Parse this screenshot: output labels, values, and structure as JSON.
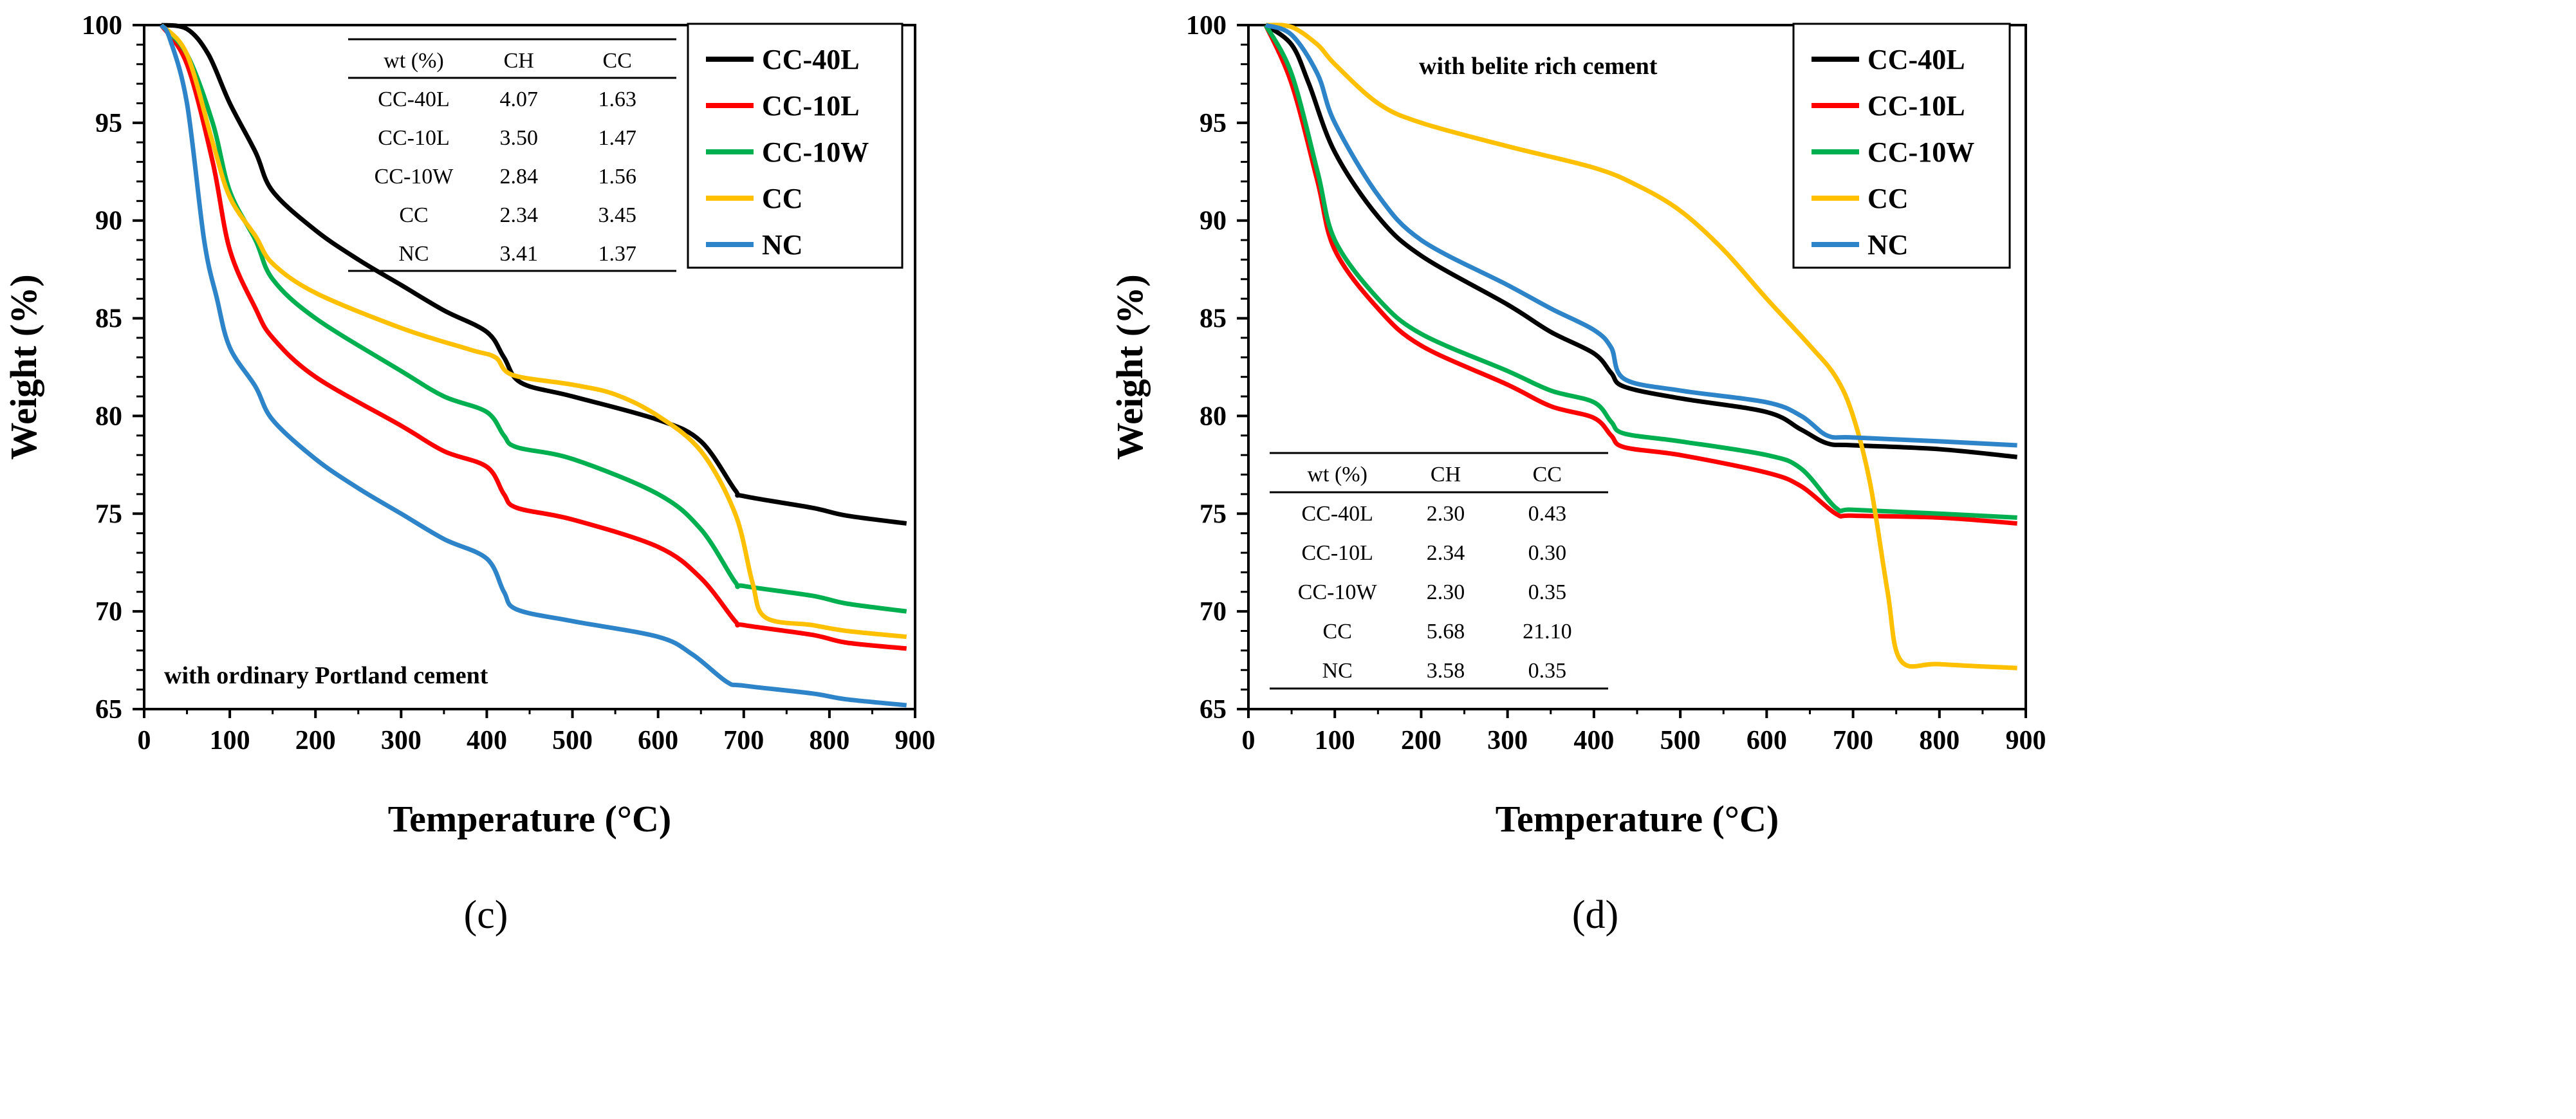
{
  "chart_data": [
    {
      "type": "line",
      "panel_label": "(c)",
      "annotation": "with ordinary Portland cement",
      "xlabel": "Temperature (°C)",
      "ylabel": "Weight (%)",
      "xlim": [
        0,
        900
      ],
      "ylim": [
        65,
        100
      ],
      "xticks": [
        0,
        100,
        200,
        300,
        400,
        500,
        600,
        700,
        800,
        900
      ],
      "yticks": [
        65,
        70,
        75,
        80,
        85,
        90,
        95,
        100
      ],
      "legend_position": "top-right",
      "table": {
        "headers": [
          "wt (%)",
          "CH",
          "CC"
        ],
        "rows": [
          [
            "CC-40L",
            "4.07",
            "1.63"
          ],
          [
            "CC-10L",
            "3.50",
            "1.47"
          ],
          [
            "CC-10W",
            "2.84",
            "1.56"
          ],
          [
            "CC",
            "2.34",
            "3.45"
          ],
          [
            "NC",
            "3.41",
            "1.37"
          ]
        ]
      },
      "series": [
        {
          "name": "CC-40L",
          "color": "#000000",
          "points": [
            [
              20,
              100
            ],
            [
              50,
              99.8
            ],
            [
              75,
              98.5
            ],
            [
              100,
              96
            ],
            [
              130,
              93.5
            ],
            [
              150,
              91.5
            ],
            [
              200,
              89.5
            ],
            [
              250,
              88
            ],
            [
              300,
              86.7
            ],
            [
              350,
              85.4
            ],
            [
              400,
              84.3
            ],
            [
              420,
              83
            ],
            [
              440,
              81.7
            ],
            [
              500,
              81
            ],
            [
              600,
              79.8
            ],
            [
              650,
              78.7
            ],
            [
              690,
              76.2
            ],
            [
              700,
              75.9
            ],
            [
              780,
              75.3
            ],
            [
              820,
              74.9
            ],
            [
              890,
              74.5
            ]
          ]
        },
        {
          "name": "CC-10L",
          "color": "#ff0000",
          "points": [
            [
              20,
              100
            ],
            [
              50,
              98
            ],
            [
              80,
              93
            ],
            [
              100,
              88.5
            ],
            [
              130,
              85.5
            ],
            [
              150,
              84
            ],
            [
              200,
              82
            ],
            [
              300,
              79.5
            ],
            [
              350,
              78.2
            ],
            [
              400,
              77.4
            ],
            [
              420,
              76
            ],
            [
              435,
              75.3
            ],
            [
              500,
              74.7
            ],
            [
              600,
              73.3
            ],
            [
              650,
              71.7
            ],
            [
              690,
              69.5
            ],
            [
              700,
              69.3
            ],
            [
              780,
              68.8
            ],
            [
              820,
              68.4
            ],
            [
              890,
              68.1
            ]
          ]
        },
        {
          "name": "CC-10W",
          "color": "#00b050",
          "points": [
            [
              20,
              100
            ],
            [
              50,
              98.5
            ],
            [
              80,
              95
            ],
            [
              100,
              91.5
            ],
            [
              130,
              89
            ],
            [
              150,
              87
            ],
            [
              200,
              85
            ],
            [
              300,
              82.3
            ],
            [
              350,
              81
            ],
            [
              400,
              80.2
            ],
            [
              420,
              79
            ],
            [
              435,
              78.4
            ],
            [
              500,
              77.8
            ],
            [
              600,
              76
            ],
            [
              650,
              74.2
            ],
            [
              690,
              71.5
            ],
            [
              700,
              71.3
            ],
            [
              780,
              70.8
            ],
            [
              820,
              70.4
            ],
            [
              890,
              70
            ]
          ]
        },
        {
          "name": "CC",
          "color": "#ffc000",
          "points": [
            [
              20,
              100
            ],
            [
              50,
              98.5
            ],
            [
              80,
              94
            ],
            [
              100,
              91.2
            ],
            [
              130,
              89.2
            ],
            [
              150,
              87.8
            ],
            [
              200,
              86.3
            ],
            [
              300,
              84.5
            ],
            [
              380,
              83.4
            ],
            [
              410,
              83
            ],
            [
              430,
              82.1
            ],
            [
              500,
              81.6
            ],
            [
              550,
              81.1
            ],
            [
              600,
              80
            ],
            [
              650,
              78.2
            ],
            [
              690,
              75
            ],
            [
              710,
              71.5
            ],
            [
              725,
              69.7
            ],
            [
              780,
              69.3
            ],
            [
              820,
              69
            ],
            [
              890,
              68.7
            ]
          ]
        },
        {
          "name": "NC",
          "color": "#2e84c8",
          "points": [
            [
              20,
              100
            ],
            [
              30,
              99.3
            ],
            [
              50,
              96
            ],
            [
              70,
              89
            ],
            [
              85,
              86
            ],
            [
              100,
              83.5
            ],
            [
              130,
              81.5
            ],
            [
              150,
              79.8
            ],
            [
              200,
              77.8
            ],
            [
              250,
              76.3
            ],
            [
              300,
              75
            ],
            [
              350,
              73.7
            ],
            [
              400,
              72.7
            ],
            [
              420,
              71
            ],
            [
              435,
              70.1
            ],
            [
              500,
              69.5
            ],
            [
              600,
              68.7
            ],
            [
              640,
              67.8
            ],
            [
              680,
              66.4
            ],
            [
              700,
              66.2
            ],
            [
              780,
              65.8
            ],
            [
              820,
              65.5
            ],
            [
              890,
              65.2
            ]
          ]
        }
      ]
    },
    {
      "type": "line",
      "panel_label": "(d)",
      "annotation": "with belite rich cement",
      "xlabel": "Temperature (°C)",
      "ylabel": "Weight (%)",
      "xlim": [
        0,
        900
      ],
      "ylim": [
        65,
        100
      ],
      "xticks": [
        0,
        100,
        200,
        300,
        400,
        500,
        600,
        700,
        800,
        900
      ],
      "yticks": [
        65,
        70,
        75,
        80,
        85,
        90,
        95,
        100
      ],
      "legend_position": "top-right",
      "table": {
        "headers": [
          "wt (%)",
          "CH",
          "CC"
        ],
        "rows": [
          [
            "CC-40L",
            "2.30",
            "0.43"
          ],
          [
            "CC-10L",
            "2.34",
            "0.30"
          ],
          [
            "CC-10W",
            "2.30",
            "0.35"
          ],
          [
            "CC",
            "5.68",
            "21.10"
          ],
          [
            "NC",
            "3.58",
            "0.35"
          ]
        ]
      },
      "series": [
        {
          "name": "CC-40L",
          "color": "#000000",
          "points": [
            [
              20,
              100
            ],
            [
              50,
              99
            ],
            [
              70,
              97
            ],
            [
              100,
              93.5
            ],
            [
              150,
              90.2
            ],
            [
              200,
              88.2
            ],
            [
              300,
              85.7
            ],
            [
              350,
              84.3
            ],
            [
              400,
              83.2
            ],
            [
              420,
              82.2
            ],
            [
              435,
              81.5
            ],
            [
              500,
              80.9
            ],
            [
              600,
              80.2
            ],
            [
              640,
              79.3
            ],
            [
              670,
              78.6
            ],
            [
              700,
              78.5
            ],
            [
              800,
              78.3
            ],
            [
              890,
              77.9
            ]
          ]
        },
        {
          "name": "CC-10L",
          "color": "#ff0000",
          "points": [
            [
              20,
              100
            ],
            [
              50,
              97
            ],
            [
              80,
              92
            ],
            [
              100,
              88.5
            ],
            [
              150,
              85.5
            ],
            [
              200,
              83.6
            ],
            [
              300,
              81.6
            ],
            [
              350,
              80.5
            ],
            [
              400,
              79.9
            ],
            [
              420,
              79
            ],
            [
              435,
              78.4
            ],
            [
              500,
              78
            ],
            [
              600,
              77.1
            ],
            [
              640,
              76.4
            ],
            [
              680,
              75
            ],
            [
              700,
              74.9
            ],
            [
              800,
              74.8
            ],
            [
              890,
              74.5
            ]
          ]
        },
        {
          "name": "CC-10W",
          "color": "#00b050",
          "points": [
            [
              20,
              100
            ],
            [
              50,
              97.5
            ],
            [
              80,
              92.5
            ],
            [
              100,
              89
            ],
            [
              150,
              86
            ],
            [
              200,
              84.2
            ],
            [
              300,
              82.3
            ],
            [
              350,
              81.3
            ],
            [
              400,
              80.7
            ],
            [
              420,
              79.7
            ],
            [
              435,
              79.1
            ],
            [
              500,
              78.7
            ],
            [
              600,
              78
            ],
            [
              640,
              77.3
            ],
            [
              680,
              75.3
            ],
            [
              700,
              75.2
            ],
            [
              800,
              75
            ],
            [
              890,
              74.8
            ]
          ]
        },
        {
          "name": "CC",
          "color": "#ffc000",
          "points": [
            [
              20,
              100
            ],
            [
              50,
              99.9
            ],
            [
              80,
              99
            ],
            [
              100,
              98
            ],
            [
              150,
              96
            ],
            [
              200,
              95
            ],
            [
              300,
              93.8
            ],
            [
              400,
              92.7
            ],
            [
              450,
              91.8
            ],
            [
              500,
              90.5
            ],
            [
              550,
              88.5
            ],
            [
              600,
              86
            ],
            [
              650,
              83.6
            ],
            [
              680,
              82
            ],
            [
              700,
              80
            ],
            [
              720,
              76.5
            ],
            [
              740,
              71
            ],
            [
              755,
              67.5
            ],
            [
              800,
              67.3
            ],
            [
              890,
              67.1
            ]
          ]
        },
        {
          "name": "NC",
          "color": "#2e84c8",
          "points": [
            [
              20,
              100
            ],
            [
              50,
              99.5
            ],
            [
              80,
              97.5
            ],
            [
              100,
              95
            ],
            [
              150,
              91.3
            ],
            [
              200,
              89
            ],
            [
              300,
              86.7
            ],
            [
              350,
              85.5
            ],
            [
              400,
              84.4
            ],
            [
              420,
              83.5
            ],
            [
              435,
              81.9
            ],
            [
              500,
              81.3
            ],
            [
              600,
              80.7
            ],
            [
              640,
              80
            ],
            [
              670,
              79
            ],
            [
              700,
              78.9
            ],
            [
              800,
              78.7
            ],
            [
              890,
              78.5
            ]
          ]
        }
      ]
    }
  ]
}
